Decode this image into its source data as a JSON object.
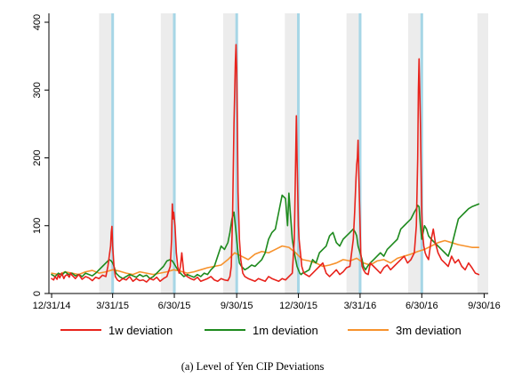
{
  "chart_data": {
    "type": "line",
    "caption": "(a) Level of Yen CIP Deviations",
    "x_ticks": [
      "12/31/14",
      "3/31/15",
      "6/30/15",
      "9/30/15",
      "12/30/15",
      "3/31/16",
      "6/30/16",
      "9/30/16"
    ],
    "y_ticks": [
      0,
      100,
      200,
      300,
      400
    ],
    "ylim": [
      0,
      400
    ],
    "xlim_days": [
      -4,
      644
    ],
    "grid": false,
    "legend_position": "bottom",
    "colors": {
      "1w": "#e8231c",
      "1m": "#1e8a1e",
      "3m": "#f7922c",
      "gray_band": "#ececec",
      "blue_band": "#a7d6e6"
    },
    "quarter_end_days": [
      90,
      181,
      273,
      364,
      455,
      546
    ],
    "series": [
      {
        "name": "1w deviation",
        "color": "#e8231c",
        "x": [
          0,
          3,
          5,
          8,
          10,
          12,
          15,
          18,
          20,
          23,
          26,
          28,
          30,
          35,
          40,
          45,
          50,
          55,
          60,
          65,
          70,
          75,
          80,
          83,
          85,
          87,
          88,
          89,
          90,
          92,
          94,
          97,
          100,
          105,
          110,
          115,
          120,
          125,
          130,
          135,
          140,
          145,
          150,
          155,
          160,
          165,
          170,
          175,
          177,
          178,
          179,
          180,
          182,
          184,
          186,
          188,
          190,
          192,
          195,
          200,
          205,
          210,
          215,
          220,
          225,
          230,
          235,
          240,
          245,
          250,
          255,
          260,
          263,
          265,
          267,
          269,
          271,
          272,
          273,
          274,
          275,
          277,
          279,
          282,
          285,
          290,
          295,
          300,
          305,
          310,
          315,
          320,
          325,
          330,
          335,
          340,
          345,
          350,
          355,
          358,
          360,
          361,
          362,
          363,
          364,
          365,
          367,
          369,
          372,
          375,
          380,
          385,
          390,
          395,
          400,
          405,
          410,
          415,
          420,
          425,
          430,
          435,
          440,
          445,
          447,
          449,
          450,
          451,
          452,
          453,
          454,
          455,
          456,
          458,
          460,
          463,
          467,
          470,
          475,
          480,
          485,
          490,
          495,
          500,
          505,
          510,
          515,
          520,
          525,
          530,
          535,
          538,
          540,
          541,
          542,
          543,
          544,
          545,
          546,
          547,
          549,
          551,
          553,
          556,
          560,
          563,
          566,
          570,
          575,
          580,
          585,
          590,
          595,
          600,
          605,
          610,
          615,
          620,
          625,
          630
        ],
        "values": [
          22,
          20,
          25,
          21,
          28,
          23,
          30,
          22,
          26,
          28,
          24,
          30,
          27,
          22,
          28,
          21,
          25,
          23,
          19,
          24,
          22,
          27,
          25,
          40,
          55,
          70,
          90,
          99,
          70,
          40,
          25,
          20,
          18,
          22,
          20,
          25,
          18,
          22,
          19,
          20,
          17,
          22,
          20,
          24,
          18,
          22,
          25,
          40,
          80,
          132,
          110,
          120,
          100,
          60,
          40,
          30,
          40,
          60,
          30,
          25,
          22,
          20,
          24,
          18,
          20,
          22,
          25,
          20,
          18,
          22,
          20,
          19,
          25,
          40,
          120,
          250,
          340,
          367,
          330,
          250,
          150,
          80,
          50,
          30,
          25,
          22,
          20,
          18,
          22,
          20,
          18,
          25,
          22,
          20,
          18,
          22,
          20,
          25,
          30,
          80,
          200,
          262,
          200,
          150,
          100,
          80,
          60,
          40,
          30,
          28,
          25,
          30,
          35,
          40,
          45,
          30,
          25,
          30,
          35,
          28,
          32,
          38,
          40,
          80,
          120,
          170,
          190,
          200,
          226,
          180,
          140,
          100,
          60,
          40,
          35,
          30,
          28,
          45,
          40,
          35,
          30,
          38,
          42,
          35,
          40,
          45,
          50,
          55,
          45,
          50,
          60,
          100,
          200,
          300,
          346,
          300,
          250,
          180,
          120,
          90,
          70,
          60,
          55,
          50,
          80,
          95,
          75,
          60,
          50,
          45,
          40,
          55,
          45,
          50,
          40,
          35,
          45,
          38,
          30,
          28
        ],
        "width": 1.6
      },
      {
        "name": "1m deviation",
        "color": "#1e8a1e",
        "x": [
          0,
          5,
          10,
          15,
          20,
          25,
          30,
          35,
          40,
          45,
          50,
          55,
          60,
          65,
          70,
          75,
          80,
          85,
          88,
          90,
          92,
          95,
          100,
          105,
          110,
          115,
          120,
          125,
          130,
          135,
          140,
          145,
          150,
          155,
          160,
          165,
          170,
          175,
          178,
          180,
          183,
          186,
          190,
          195,
          200,
          205,
          210,
          215,
          220,
          225,
          230,
          235,
          240,
          245,
          250,
          255,
          260,
          263,
          266,
          269,
          271,
          273,
          275,
          277,
          280,
          285,
          290,
          295,
          300,
          305,
          310,
          315,
          320,
          325,
          330,
          335,
          340,
          345,
          348,
          350,
          352,
          355,
          358,
          360,
          362,
          364,
          366,
          368,
          370,
          375,
          380,
          385,
          390,
          395,
          400,
          405,
          410,
          415,
          420,
          425,
          430,
          435,
          440,
          445,
          448,
          450,
          452,
          455,
          458,
          460,
          463,
          466,
          470,
          475,
          480,
          485,
          490,
          495,
          500,
          505,
          510,
          515,
          520,
          525,
          530,
          535,
          538,
          540,
          542,
          544,
          546,
          548,
          550,
          553,
          556,
          560,
          565,
          570,
          575,
          580,
          585,
          590,
          595,
          600,
          605,
          610,
          615,
          620,
          625,
          630
        ],
        "values": [
          28,
          25,
          30,
          27,
          32,
          28,
          30,
          26,
          28,
          25,
          30,
          28,
          26,
          30,
          35,
          40,
          45,
          50,
          48,
          45,
          40,
          30,
          25,
          22,
          25,
          28,
          26,
          24,
          28,
          25,
          27,
          22,
          25,
          30,
          35,
          40,
          48,
          50,
          48,
          45,
          40,
          35,
          30,
          25,
          28,
          26,
          24,
          28,
          25,
          30,
          28,
          35,
          40,
          55,
          70,
          65,
          75,
          90,
          110,
          120,
          100,
          80,
          60,
          45,
          40,
          35,
          38,
          42,
          40,
          45,
          50,
          60,
          80,
          90,
          95,
          120,
          145,
          140,
          100,
          148,
          120,
          80,
          60,
          50,
          40,
          35,
          30,
          28,
          30,
          32,
          35,
          50,
          45,
          60,
          65,
          70,
          85,
          90,
          75,
          70,
          80,
          85,
          90,
          95,
          90,
          85,
          70,
          60,
          50,
          40,
          35,
          40,
          45,
          50,
          55,
          60,
          55,
          65,
          70,
          75,
          80,
          95,
          100,
          105,
          110,
          120,
          125,
          130,
          128,
          100,
          80,
          90,
          100,
          95,
          85,
          80,
          75,
          70,
          65,
          60,
          55,
          70,
          90,
          110,
          115,
          120,
          125,
          128,
          130,
          132
        ],
        "width": 1.6
      },
      {
        "name": "3m deviation",
        "color": "#f7922c",
        "x": [
          0,
          10,
          20,
          30,
          40,
          50,
          60,
          70,
          80,
          90,
          100,
          110,
          120,
          130,
          140,
          150,
          160,
          170,
          180,
          190,
          200,
          210,
          220,
          230,
          240,
          250,
          260,
          270,
          280,
          290,
          300,
          310,
          320,
          330,
          340,
          350,
          360,
          370,
          380,
          390,
          400,
          410,
          420,
          430,
          440,
          450,
          460,
          470,
          480,
          490,
          500,
          510,
          520,
          530,
          540,
          550,
          560,
          570,
          580,
          590,
          600,
          610,
          620,
          630
        ],
        "values": [
          30,
          28,
          32,
          30,
          28,
          32,
          34,
          30,
          32,
          35,
          33,
          30,
          28,
          32,
          30,
          28,
          30,
          32,
          35,
          33,
          30,
          32,
          35,
          38,
          40,
          42,
          50,
          60,
          55,
          50,
          58,
          62,
          60,
          65,
          70,
          68,
          60,
          50,
          48,
          45,
          40,
          42,
          45,
          50,
          48,
          52,
          45,
          42,
          48,
          50,
          45,
          52,
          55,
          58,
          62,
          65,
          70,
          75,
          78,
          75,
          72,
          70,
          68,
          68
        ],
        "width": 1.6
      }
    ]
  }
}
